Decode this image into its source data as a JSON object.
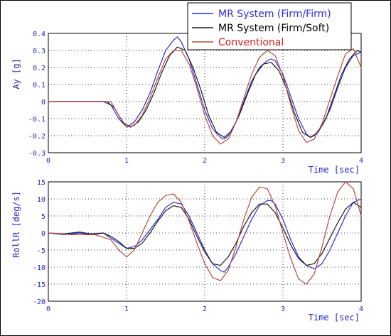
{
  "chart_data": [
    {
      "type": "line",
      "ylabel": "Ay [g]",
      "xlabel": "Time [sec]",
      "xlim": [
        0,
        4
      ],
      "ylim": [
        -0.3,
        0.4
      ],
      "xticks": [
        "0",
        "1",
        "2",
        "3",
        "4"
      ],
      "yticks": [
        "0.4",
        "0.3",
        "0.2",
        "0.1",
        "0",
        "-0.1",
        "-0.2",
        "-0.3"
      ],
      "ytick_values": [
        0.4,
        0.3,
        0.2,
        0.1,
        0,
        -0.1,
        -0.2,
        -0.3
      ],
      "grid": true,
      "series": [
        {
          "name": "MR System (Firm/Firm)",
          "color": "#2b2bd8",
          "x": [
            0,
            0.7,
            0.8,
            0.9,
            1.0,
            1.1,
            1.2,
            1.3,
            1.4,
            1.5,
            1.6,
            1.65,
            1.7,
            1.8,
            1.9,
            2.0,
            2.1,
            2.2,
            2.25,
            2.3,
            2.4,
            2.5,
            2.6,
            2.7,
            2.8,
            2.85,
            2.9,
            3.0,
            3.1,
            3.2,
            3.3,
            3.35,
            3.4,
            3.5,
            3.6,
            3.7,
            3.8,
            3.9,
            4.0
          ],
          "y": [
            0,
            0,
            -0.02,
            -0.1,
            -0.15,
            -0.12,
            -0.05,
            0.05,
            0.18,
            0.3,
            0.36,
            0.38,
            0.35,
            0.25,
            0.1,
            -0.05,
            -0.16,
            -0.21,
            -0.22,
            -0.2,
            -0.12,
            0,
            0.12,
            0.2,
            0.24,
            0.25,
            0.24,
            0.16,
            0.03,
            -0.1,
            -0.19,
            -0.21,
            -0.2,
            -0.14,
            -0.05,
            0.08,
            0.2,
            0.27,
            0.29
          ]
        },
        {
          "name": "MR System (Firm/Soft)",
          "color": "#1a1a1a",
          "x": [
            0,
            0.75,
            0.85,
            0.95,
            1.05,
            1.15,
            1.25,
            1.35,
            1.45,
            1.55,
            1.65,
            1.75,
            1.85,
            1.95,
            2.05,
            2.15,
            2.25,
            2.35,
            2.45,
            2.55,
            2.65,
            2.75,
            2.85,
            2.95,
            3.05,
            3.15,
            3.25,
            3.35,
            3.45,
            3.55,
            3.65,
            3.75,
            3.85,
            3.95,
            4.0
          ],
          "y": [
            0,
            0,
            -0.04,
            -0.12,
            -0.15,
            -0.12,
            -0.05,
            0.05,
            0.17,
            0.27,
            0.32,
            0.3,
            0.2,
            0.07,
            -0.08,
            -0.18,
            -0.21,
            -0.17,
            -0.07,
            0.05,
            0.16,
            0.22,
            0.23,
            0.18,
            0.07,
            -0.07,
            -0.18,
            -0.21,
            -0.18,
            -0.1,
            0.03,
            0.16,
            0.25,
            0.3,
            0.29
          ]
        },
        {
          "name": "Conventional",
          "color": "#b84a3c",
          "x": [
            0,
            0.8,
            0.9,
            1.0,
            1.1,
            1.2,
            1.3,
            1.4,
            1.5,
            1.6,
            1.7,
            1.8,
            1.9,
            2.0,
            2.1,
            2.2,
            2.3,
            2.4,
            2.5,
            2.6,
            2.7,
            2.8,
            2.9,
            3.0,
            3.1,
            3.2,
            3.3,
            3.4,
            3.5,
            3.6,
            3.7,
            3.8,
            3.9,
            4.0
          ],
          "y": [
            0,
            0,
            -0.08,
            -0.15,
            -0.14,
            -0.08,
            0.02,
            0.14,
            0.25,
            0.3,
            0.3,
            0.22,
            0.08,
            -0.08,
            -0.2,
            -0.25,
            -0.22,
            -0.12,
            0.02,
            0.16,
            0.26,
            0.3,
            0.27,
            0.15,
            -0.02,
            -0.17,
            -0.24,
            -0.22,
            -0.13,
            0.01,
            0.15,
            0.28,
            0.31,
            0.2
          ]
        }
      ]
    },
    {
      "type": "line",
      "ylabel": "RollR [deg/s]",
      "xlabel": "Time [sec]",
      "xlim": [
        0,
        4
      ],
      "ylim": [
        -20,
        15
      ],
      "xticks": [
        "0",
        "1",
        "2",
        "3",
        "4"
      ],
      "yticks": [
        "15",
        "10",
        "5",
        "0",
        "-5",
        "-10",
        "-15",
        "-20"
      ],
      "ytick_values": [
        15,
        10,
        5,
        0,
        -5,
        -10,
        -15,
        -20
      ],
      "grid": true,
      "series": [
        {
          "name": "MR System (Firm/Firm)",
          "color": "#2b2bd8",
          "x": [
            0,
            0.2,
            0.4,
            0.55,
            0.7,
            0.8,
            0.9,
            1.0,
            1.1,
            1.2,
            1.3,
            1.4,
            1.5,
            1.6,
            1.7,
            1.8,
            1.9,
            2.0,
            2.1,
            2.2,
            2.25,
            2.3,
            2.4,
            2.5,
            2.6,
            2.7,
            2.8,
            2.85,
            2.9,
            3.0,
            3.1,
            3.2,
            3.3,
            3.4,
            3.5,
            3.6,
            3.7,
            3.8,
            3.9,
            4.0
          ],
          "y": [
            0,
            -0.5,
            0,
            -0.5,
            0,
            -1.5,
            -3,
            -4.5,
            -4,
            -2,
            1,
            4,
            7.5,
            9,
            8.5,
            5,
            0,
            -5,
            -9,
            -11,
            -11.5,
            -10,
            -6,
            -1,
            4,
            8,
            9.5,
            9.5,
            8.5,
            4,
            -2,
            -7,
            -9.5,
            -10.5,
            -9,
            -5,
            0,
            5,
            9,
            10
          ]
        },
        {
          "name": "MR System (Firm/Soft)",
          "color": "#1a1a1a",
          "x": [
            0,
            0.2,
            0.4,
            0.55,
            0.7,
            0.8,
            0.9,
            1.0,
            1.1,
            1.2,
            1.3,
            1.4,
            1.5,
            1.6,
            1.7,
            1.8,
            1.9,
            2.0,
            2.1,
            2.2,
            2.3,
            2.4,
            2.5,
            2.6,
            2.7,
            2.8,
            2.9,
            3.0,
            3.1,
            3.2,
            3.3,
            3.4,
            3.5,
            3.6,
            3.7,
            3.8,
            3.9,
            4.0
          ],
          "y": [
            0,
            -0.3,
            0.3,
            -0.3,
            0,
            -1,
            -2.5,
            -4.5,
            -4.5,
            -3,
            0,
            3.5,
            6.5,
            8,
            7.5,
            4,
            -1,
            -5.5,
            -9,
            -9.5,
            -7,
            -3,
            2,
            6,
            8.5,
            8.5,
            6,
            1.5,
            -3.5,
            -7.5,
            -9.5,
            -9,
            -6,
            -1.5,
            3,
            7,
            9,
            7.5
          ]
        },
        {
          "name": "Conventional",
          "color": "#b84a3c",
          "x": [
            0,
            0.3,
            0.6,
            0.8,
            0.9,
            1.0,
            1.1,
            1.2,
            1.3,
            1.4,
            1.5,
            1.6,
            1.7,
            1.8,
            1.9,
            2.0,
            2.1,
            2.2,
            2.3,
            2.4,
            2.5,
            2.6,
            2.7,
            2.8,
            2.9,
            3.0,
            3.1,
            3.2,
            3.3,
            3.4,
            3.5,
            3.6,
            3.7,
            3.8,
            3.9,
            4.0
          ],
          "y": [
            0,
            -0.5,
            -0.5,
            -2,
            -5,
            -7,
            -5,
            0,
            5,
            9,
            11,
            11.5,
            9,
            3.5,
            -3,
            -9,
            -13,
            -14,
            -11,
            -4,
            4,
            10.5,
            13.5,
            13,
            8,
            0,
            -7.5,
            -13.5,
            -15,
            -12,
            -4,
            5,
            12,
            15,
            13,
            5
          ]
        }
      ]
    }
  ],
  "legend": {
    "entries": [
      {
        "label": "MR System (Firm/Firm)",
        "color": "#2b2bd8"
      },
      {
        "label": "MR System (Firm/Soft)",
        "color": "#1a1a1a"
      },
      {
        "label": "Conventional",
        "color": "#b84a3c"
      }
    ]
  }
}
